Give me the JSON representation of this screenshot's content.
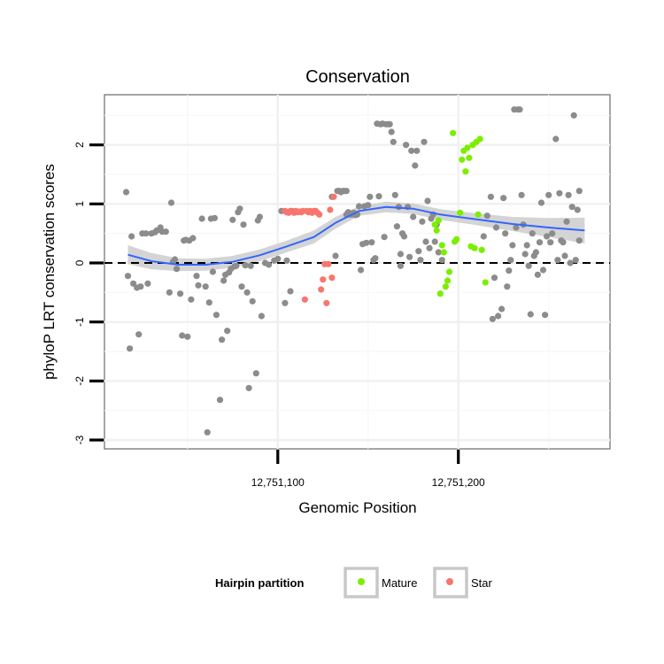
{
  "chart_data": {
    "type": "scatter",
    "title": "Conservation",
    "xlabel": "Genomic Position",
    "ylabel": "phyloP LRT conservation scores",
    "xlim": [
      12751004,
      12751284
    ],
    "ylim": [
      -3.15,
      2.85
    ],
    "x_ticks": [
      {
        "value": 12751100,
        "label": "12,751,100"
      },
      {
        "value": 12751200,
        "label": "12,751,200"
      }
    ],
    "y_ticks": [
      {
        "value": -3,
        "label": "-3"
      },
      {
        "value": -2,
        "label": "-2"
      },
      {
        "value": -1,
        "label": "-1"
      },
      {
        "value": 0,
        "label": "0"
      },
      {
        "value": 1,
        "label": "1"
      },
      {
        "value": 2,
        "label": "2"
      }
    ],
    "grid": true,
    "reference_line": {
      "y": 0,
      "style": "dashed",
      "color": "#000000"
    },
    "legend": {
      "title": "Hairpin partition",
      "position": "bottom",
      "entries": [
        {
          "label": "Mature",
          "color": "#7cee00"
        },
        {
          "label": "Star",
          "color": "#f8766d"
        }
      ]
    },
    "colors": {
      "other": "#8c8c8c",
      "mature": "#7cee00",
      "star": "#f8766d",
      "smooth": "#3366ff",
      "ribbon": "#cccccc"
    },
    "smooth": {
      "x": [
        12751017,
        12751030,
        12751045,
        12751060,
        12751075,
        12751090,
        12751105,
        12751120,
        12751132,
        12751145,
        12751160,
        12751175,
        12751190,
        12751210,
        12751230,
        12751250,
        12751270
      ],
      "y": [
        0.14,
        0.03,
        -0.03,
        -0.03,
        0.02,
        0.13,
        0.28,
        0.44,
        0.68,
        0.88,
        0.95,
        0.92,
        0.82,
        0.74,
        0.66,
        0.6,
        0.55
      ],
      "lower": [
        -0.02,
        -0.11,
        -0.14,
        -0.13,
        -0.08,
        0.03,
        0.18,
        0.33,
        0.58,
        0.8,
        0.86,
        0.83,
        0.73,
        0.64,
        0.54,
        0.44,
        0.33
      ],
      "upper": [
        0.3,
        0.17,
        0.08,
        0.07,
        0.12,
        0.23,
        0.38,
        0.55,
        0.78,
        0.96,
        1.04,
        1.01,
        0.91,
        0.84,
        0.78,
        0.76,
        0.77
      ]
    },
    "series": [
      {
        "group": "other",
        "points": [
          [
            12751016,
            1.2
          ],
          [
            12751017,
            -0.22
          ],
          [
            12751018,
            -1.45
          ],
          [
            12751019,
            0.45
          ],
          [
            12751020,
            -0.35
          ],
          [
            12751022,
            -0.42
          ],
          [
            12751023,
            -1.21
          ],
          [
            12751024,
            -0.4
          ],
          [
            12751025,
            0.5
          ],
          [
            12751027,
            0.5
          ],
          [
            12751028,
            -0.35
          ],
          [
            12751030,
            0.5
          ],
          [
            12751032,
            0.52
          ],
          [
            12751033,
            0.55
          ],
          [
            12751035,
            0.6
          ],
          [
            12751036,
            0.53
          ],
          [
            12751038,
            0.53
          ],
          [
            12751040,
            -0.5
          ],
          [
            12751041,
            1.02
          ],
          [
            12751042,
            0.02
          ],
          [
            12751043,
            0.06
          ],
          [
            12751044,
            -0.1
          ],
          [
            12751046,
            -0.52
          ],
          [
            12751047,
            -1.23
          ],
          [
            12751048,
            0.38
          ],
          [
            12751049,
            0.39
          ],
          [
            12751050,
            -1.25
          ],
          [
            12751051,
            0.38
          ],
          [
            12751052,
            -0.62
          ],
          [
            12751053,
            0.42
          ],
          [
            12751055,
            -0.22
          ],
          [
            12751056,
            -0.38
          ],
          [
            12751058,
            0.75
          ],
          [
            12751060,
            -0.4
          ],
          [
            12751061,
            -2.87
          ],
          [
            12751062,
            -0.67
          ],
          [
            12751063,
            0.75
          ],
          [
            12751064,
            -0.15
          ],
          [
            12751065,
            0.76
          ],
          [
            12751066,
            -0.88
          ],
          [
            12751068,
            -2.32
          ],
          [
            12751069,
            -1.3
          ],
          [
            12751070,
            -0.3
          ],
          [
            12751071,
            -0.2
          ],
          [
            12751072,
            -1.15
          ],
          [
            12751073,
            -0.16
          ],
          [
            12751074,
            -0.1
          ],
          [
            12751075,
            0.73
          ],
          [
            12751076,
            -0.06
          ],
          [
            12751077,
            -0.05
          ],
          [
            12751078,
            0.86
          ],
          [
            12751079,
            0.92
          ],
          [
            12751080,
            -0.4
          ],
          [
            12751081,
            0.65
          ],
          [
            12751082,
            -0.04
          ],
          [
            12751083,
            -0.5
          ],
          [
            12751084,
            -2.12
          ],
          [
            12751085,
            -0.05
          ],
          [
            12751086,
            -0.65
          ],
          [
            12751088,
            -1.87
          ],
          [
            12751089,
            0.72
          ],
          [
            12751090,
            0.78
          ],
          [
            12751091,
            -0.9
          ],
          [
            12751093,
            0.0
          ],
          [
            12751095,
            -0.03
          ],
          [
            12751098,
            0.04
          ],
          [
            12751100,
            0.07
          ],
          [
            12751102,
            0.88
          ],
          [
            12751104,
            -0.68
          ],
          [
            12751105,
            0.04
          ],
          [
            12751107,
            -0.48
          ],
          [
            12751130,
            1.12
          ],
          [
            12751132,
            0.12
          ],
          [
            12751133,
            1.22
          ],
          [
            12751134,
            1.22
          ],
          [
            12751135,
            1.2
          ],
          [
            12751136,
            1.22
          ],
          [
            12751137,
            1.22
          ],
          [
            12751138,
            1.22
          ],
          [
            12751138,
            0.82
          ],
          [
            12751139,
            0.86
          ],
          [
            12751140,
            0.82
          ],
          [
            12751141,
            0.82
          ],
          [
            12751142,
            0.85
          ],
          [
            12751143,
            0.81
          ],
          [
            12751144,
            0.82
          ],
          [
            12751145,
            0.96
          ],
          [
            12751146,
            -0.12
          ],
          [
            12751147,
            0.32
          ],
          [
            12751148,
            0.96
          ],
          [
            12751149,
            0.34
          ],
          [
            12751150,
            0.98
          ],
          [
            12751151,
            1.12
          ],
          [
            12751152,
            0.35
          ],
          [
            12751153,
            0.05
          ],
          [
            12751154,
            0.08
          ],
          [
            12751155,
            2.36
          ],
          [
            12751156,
            1.13
          ],
          [
            12751157,
            2.35
          ],
          [
            12751158,
            2.36
          ],
          [
            12751159,
            0.44
          ],
          [
            12751160,
            2.35
          ],
          [
            12751161,
            2.35
          ],
          [
            12751162,
            2.35
          ],
          [
            12751163,
            2.22
          ],
          [
            12751164,
            2.05
          ],
          [
            12751165,
            1.15
          ],
          [
            12751166,
            0.62
          ],
          [
            12751167,
            0.95
          ],
          [
            12751168,
            -0.05
          ],
          [
            12751168,
            0.15
          ],
          [
            12751169,
            0.5
          ],
          [
            12751170,
            0.45
          ],
          [
            12751171,
            2.0
          ],
          [
            12751172,
            0.95
          ],
          [
            12751173,
            0.1
          ],
          [
            12751174,
            1.9
          ],
          [
            12751175,
            0.78
          ],
          [
            12751176,
            1.65
          ],
          [
            12751177,
            1.9
          ],
          [
            12751178,
            0.2
          ],
          [
            12751179,
            0.05
          ],
          [
            12751180,
            0.7
          ],
          [
            12751181,
            2.05
          ],
          [
            12751182,
            0.36
          ],
          [
            12751183,
            1.05
          ],
          [
            12751184,
            0.25
          ],
          [
            12751185,
            0.75
          ],
          [
            12751186,
            0.82
          ],
          [
            12751187,
            0.36
          ],
          [
            12751188,
            0.65
          ],
          [
            12751189,
            0.18
          ],
          [
            12751191,
            0.05
          ],
          [
            12751214,
            0.45
          ],
          [
            12751216,
            0.8
          ],
          [
            12751218,
            1.12
          ],
          [
            12751219,
            -0.95
          ],
          [
            12751220,
            -0.25
          ],
          [
            12751221,
            0.6
          ],
          [
            12751222,
            -0.9
          ],
          [
            12751224,
            -0.78
          ],
          [
            12751225,
            1.1
          ],
          [
            12751226,
            0.5
          ],
          [
            12751227,
            -0.4
          ],
          [
            12751228,
            -0.13
          ],
          [
            12751229,
            0.05
          ],
          [
            12751230,
            0.3
          ],
          [
            12751231,
            2.6
          ],
          [
            12751232,
            0.6
          ],
          [
            12751233,
            2.6
          ],
          [
            12751234,
            2.6
          ],
          [
            12751235,
            1.15
          ],
          [
            12751236,
            0.65
          ],
          [
            12751237,
            0.15
          ],
          [
            12751238,
            0.3
          ],
          [
            12751239,
            -0.05
          ],
          [
            12751240,
            -0.87
          ],
          [
            12751241,
            0.5
          ],
          [
            12751242,
            0.12
          ],
          [
            12751243,
            0.18
          ],
          [
            12751244,
            -0.2
          ],
          [
            12751245,
            0.35
          ],
          [
            12751246,
            1.02
          ],
          [
            12751247,
            -0.12
          ],
          [
            12751248,
            -0.88
          ],
          [
            12751249,
            0.45
          ],
          [
            12751250,
            1.15
          ],
          [
            12751251,
            0.35
          ],
          [
            12751252,
            0.5
          ],
          [
            12751254,
            2.1
          ],
          [
            12751255,
            0.05
          ],
          [
            12751256,
            1.18
          ],
          [
            12751257,
            0.38
          ],
          [
            12751258,
            0.35
          ],
          [
            12751259,
            0.12
          ],
          [
            12751260,
            0.7
          ],
          [
            12751261,
            1.15
          ],
          [
            12751262,
            0.0
          ],
          [
            12751263,
            0.95
          ],
          [
            12751264,
            2.5
          ],
          [
            12751265,
            0.05
          ],
          [
            12751266,
            0.9
          ],
          [
            12751267,
            1.22
          ],
          [
            12751267,
            0.38
          ]
        ]
      },
      {
        "group": "star",
        "points": [
          [
            12751104,
            0.88
          ],
          [
            12751105,
            0.86
          ],
          [
            12751106,
            0.85
          ],
          [
            12751107,
            0.88
          ],
          [
            12751108,
            0.88
          ],
          [
            12751109,
            0.85
          ],
          [
            12751110,
            0.88
          ],
          [
            12751111,
            0.86
          ],
          [
            12751112,
            0.87
          ],
          [
            12751113,
            0.86
          ],
          [
            12751114,
            0.88
          ],
          [
            12751115,
            -0.62
          ],
          [
            12751116,
            0.88
          ],
          [
            12751117,
            0.86
          ],
          [
            12751118,
            0.88
          ],
          [
            12751119,
            0.85
          ],
          [
            12751120,
            0.88
          ],
          [
            12751121,
            0.88
          ],
          [
            12751122,
            0.85
          ],
          [
            12751123,
            0.82
          ],
          [
            12751124,
            -0.45
          ],
          [
            12751125,
            -0.28
          ],
          [
            12751126,
            -0.02
          ],
          [
            12751127,
            -0.68
          ],
          [
            12751128,
            -0.02
          ],
          [
            12751129,
            0.9
          ],
          [
            12751130,
            -0.25
          ],
          [
            12751131,
            1.12
          ]
        ]
      },
      {
        "group": "mature",
        "points": [
          [
            12751187,
            0.65
          ],
          [
            12751188,
            0.55
          ],
          [
            12751189,
            0.72
          ],
          [
            12751190,
            -0.52
          ],
          [
            12751191,
            0.3
          ],
          [
            12751192,
            0.18
          ],
          [
            12751193,
            -0.4
          ],
          [
            12751194,
            -0.3
          ],
          [
            12751195,
            -0.15
          ],
          [
            12751197,
            2.2
          ],
          [
            12751198,
            0.36
          ],
          [
            12751199,
            0.4
          ],
          [
            12751201,
            0.85
          ],
          [
            12751202,
            1.75
          ],
          [
            12751203,
            1.9
          ],
          [
            12751204,
            1.55
          ],
          [
            12751205,
            1.95
          ],
          [
            12751206,
            1.78
          ],
          [
            12751207,
            0.28
          ],
          [
            12751208,
            2.0
          ],
          [
            12751209,
            0.25
          ],
          [
            12751210,
            2.05
          ],
          [
            12751211,
            0.82
          ],
          [
            12751212,
            2.1
          ],
          [
            12751213,
            0.22
          ],
          [
            12751215,
            -0.33
          ]
        ]
      }
    ]
  }
}
